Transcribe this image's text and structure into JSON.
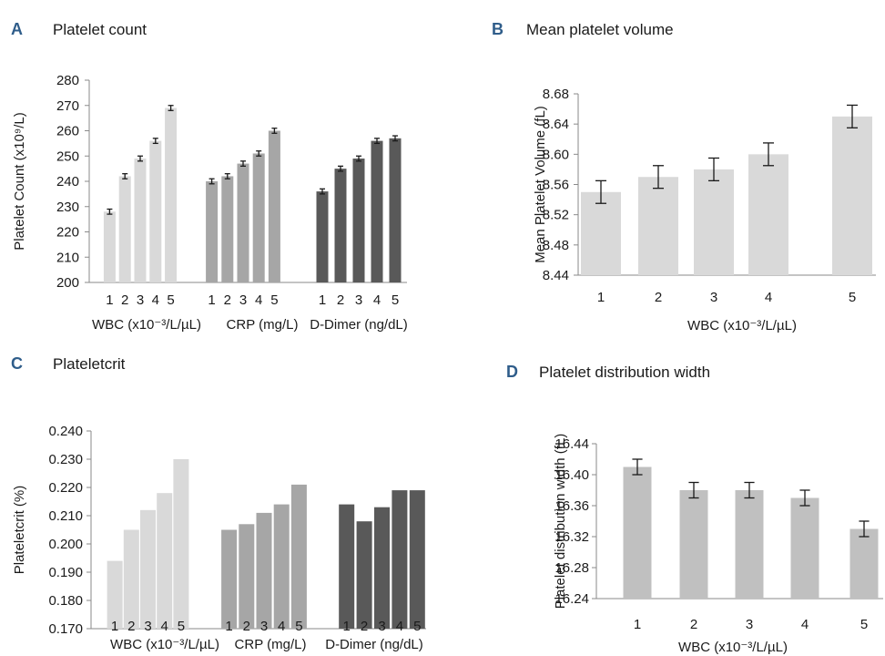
{
  "chart_data": [
    {
      "id": "A",
      "type": "bar",
      "panel_letter": "A",
      "title": "Platelet count",
      "ylabel": "Platelet Count (x10⁹/L)",
      "ylim": [
        200,
        280
      ],
      "yticks": [
        "200",
        "210",
        "220",
        "230",
        "240",
        "250",
        "260",
        "270",
        "280"
      ],
      "error_bars": true,
      "groups": [
        {
          "label": "WBC (x10⁻³/L/µL)",
          "color": "#d9d9d9",
          "categories": [
            "1",
            "2",
            "3",
            "4",
            "5"
          ],
          "values": [
            228,
            242,
            249,
            256,
            269
          ],
          "errors": [
            1,
            1,
            1,
            1,
            1
          ]
        },
        {
          "label": "CRP (mg/L)",
          "color": "#a6a6a6",
          "categories": [
            "1",
            "2",
            "3",
            "4",
            "5"
          ],
          "values": [
            240,
            242,
            247,
            251,
            260
          ],
          "errors": [
            1,
            1,
            1,
            1,
            1
          ]
        },
        {
          "label": "D-Dimer (ng/dL)",
          "color": "#595959",
          "categories": [
            "1",
            "2",
            "3",
            "4",
            "5"
          ],
          "values": [
            236,
            245,
            249,
            256,
            257
          ],
          "errors": [
            1,
            1,
            1,
            1,
            1
          ]
        }
      ]
    },
    {
      "id": "B",
      "type": "bar",
      "panel_letter": "B",
      "title": "Mean platelet volume",
      "ylabel": "Mean Platelet Volume (fL)",
      "xlabel": "WBC (x10⁻³/L/µL)",
      "ylim": [
        8.44,
        8.68
      ],
      "yticks": [
        "8.44",
        "8.48",
        "8.52",
        "8.56",
        "8.60",
        "8.64",
        "8.68"
      ],
      "error_bars": true,
      "color": "#d9d9d9",
      "categories": [
        "1",
        "2",
        "3",
        "4",
        "5"
      ],
      "values": [
        8.55,
        8.57,
        8.58,
        8.6,
        8.65
      ],
      "errors": [
        0.015,
        0.015,
        0.015,
        0.015,
        0.015
      ]
    },
    {
      "id": "C",
      "type": "bar",
      "panel_letter": "C",
      "title": "Plateletcrit",
      "ylabel": "Plateletcrit (%)",
      "ylim": [
        0.17,
        0.24
      ],
      "yticks": [
        "0.170",
        "0.180",
        "0.190",
        "0.200",
        "0.210",
        "0.220",
        "0.230",
        "0.240"
      ],
      "error_bars": false,
      "groups": [
        {
          "label": "WBC (x10⁻³/L/µL)",
          "color": "#d9d9d9",
          "categories": [
            "1",
            "2",
            "3",
            "4",
            "5"
          ],
          "values": [
            0.194,
            0.205,
            0.212,
            0.218,
            0.23
          ]
        },
        {
          "label": "CRP (mg/L)",
          "color": "#a6a6a6",
          "categories": [
            "1",
            "2",
            "3",
            "4",
            "5"
          ],
          "values": [
            0.205,
            0.207,
            0.211,
            0.214,
            0.221
          ]
        },
        {
          "label": "D-Dimer (ng/dL)",
          "color": "#595959",
          "categories": [
            "1",
            "2",
            "3",
            "4",
            "5"
          ],
          "values": [
            0.214,
            0.208,
            0.213,
            0.219,
            0.219
          ]
        }
      ]
    },
    {
      "id": "D",
      "type": "bar",
      "panel_letter": "D",
      "title": "Platelet distribution width",
      "ylabel": "Platelet distribution width (fL)",
      "xlabel": "WBC (x10⁻³/L/µL)",
      "ylim": [
        16.24,
        16.44
      ],
      "yticks": [
        "16.24",
        "16.28",
        "16.32",
        "16.36",
        "16.40",
        "16.44"
      ],
      "error_bars": true,
      "color": "#c0c0c0",
      "categories": [
        "1",
        "2",
        "3",
        "4",
        "5"
      ],
      "values": [
        16.41,
        16.38,
        16.38,
        16.37,
        16.33
      ],
      "errors": [
        0.01,
        0.01,
        0.01,
        0.01,
        0.01
      ]
    }
  ]
}
